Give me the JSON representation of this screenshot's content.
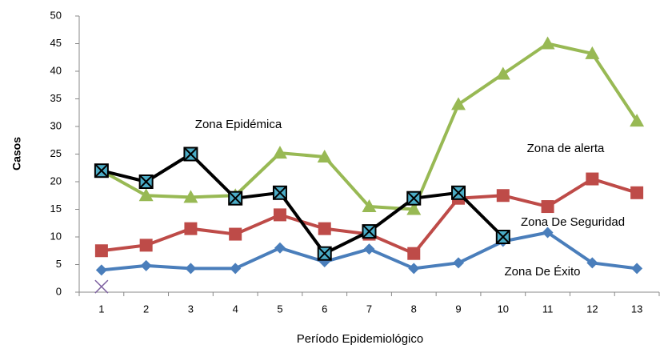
{
  "chart_data": {
    "type": "line",
    "xlabel": "Período Epidemiológico",
    "ylabel": "Casos",
    "categories": [
      "1",
      "2",
      "3",
      "4",
      "5",
      "6",
      "7",
      "8",
      "9",
      "10",
      "11",
      "12",
      "13"
    ],
    "ylim": [
      0,
      50
    ],
    "yticks": [
      0,
      5,
      10,
      15,
      20,
      25,
      30,
      35,
      40,
      45,
      50
    ],
    "annotations": [
      "Zona Epidémica",
      "Zona de alerta",
      "Zona De Seguridad",
      "Zona De Éxito"
    ],
    "series": [
      {
        "color": "#4a7ebb",
        "marker": "diamond",
        "line": true,
        "values": [
          4,
          4.8,
          4.3,
          4.3,
          8,
          5.5,
          7.8,
          4.3,
          5.3,
          9.2,
          10.8,
          5.3,
          4.3
        ]
      },
      {
        "color": "#be4b48",
        "marker": "square",
        "line": true,
        "values": [
          7.5,
          8.5,
          11.5,
          10.5,
          14,
          11.5,
          10.5,
          7,
          17,
          17.5,
          15.5,
          20.5,
          18
        ]
      },
      {
        "color": "#98b954",
        "marker": "triangle",
        "line": true,
        "values": [
          22,
          17.5,
          17.2,
          17.5,
          25.2,
          24.5,
          15.5,
          15,
          34,
          39.5,
          45,
          43.2,
          31
        ]
      },
      {
        "color": "#000000",
        "marker": "star",
        "line": true,
        "values": [
          22,
          20,
          25,
          17,
          18,
          7,
          11,
          17,
          18,
          10,
          null,
          null,
          null
        ]
      },
      {
        "color": "#7d60a0",
        "marker": "x",
        "line": false,
        "values": [
          1,
          null,
          null,
          null,
          null,
          null,
          null,
          null,
          null,
          null,
          null,
          null,
          null
        ]
      }
    ]
  }
}
